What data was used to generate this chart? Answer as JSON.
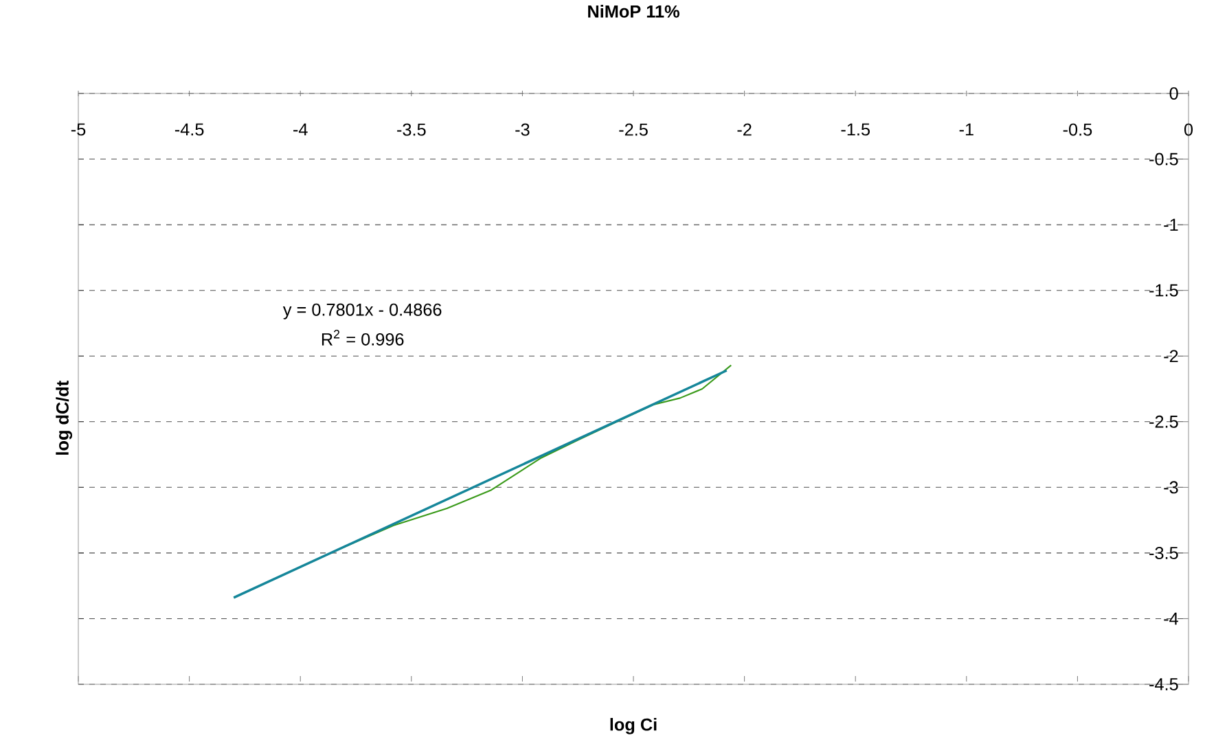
{
  "chart_data": {
    "type": "line",
    "title": "NiMoP 11%",
    "xlabel": "log Ci",
    "ylabel": "log dC/dt",
    "annotations": [
      "y = 0.7801x - 0.4866",
      "R$^{2}$ = 0.996"
    ],
    "series": [
      {
        "color": "#3a9a1a",
        "x": [
          -4.3,
          -3.85,
          -3.58,
          -3.34,
          -3.14,
          -2.92,
          -2.75,
          -2.55,
          -2.41,
          -2.29,
          -2.19,
          -2.06
        ],
        "values": [
          -3.84,
          -3.49,
          -3.29,
          -3.16,
          -3.02,
          -2.78,
          -2.64,
          -2.48,
          -2.37,
          -2.32,
          -2.25,
          -2.07
        ]
      },
      {
        "color": "#15869a",
        "x": [
          -4.3,
          -2.08
        ],
        "values": [
          -3.84,
          -2.11
        ]
      }
    ],
    "xlim": [
      -5,
      0
    ],
    "ylim": [
      -4.5,
      0
    ],
    "xticks": [
      -5,
      -4.5,
      -4,
      -3.5,
      -3,
      -2.5,
      -2,
      -1.5,
      -1,
      -0.5,
      0
    ],
    "yticks": [
      -4.5,
      -4,
      -3.5,
      -3,
      -2.5,
      -2,
      -1.5,
      -1,
      -0.5,
      0
    ],
    "grid": "y"
  }
}
